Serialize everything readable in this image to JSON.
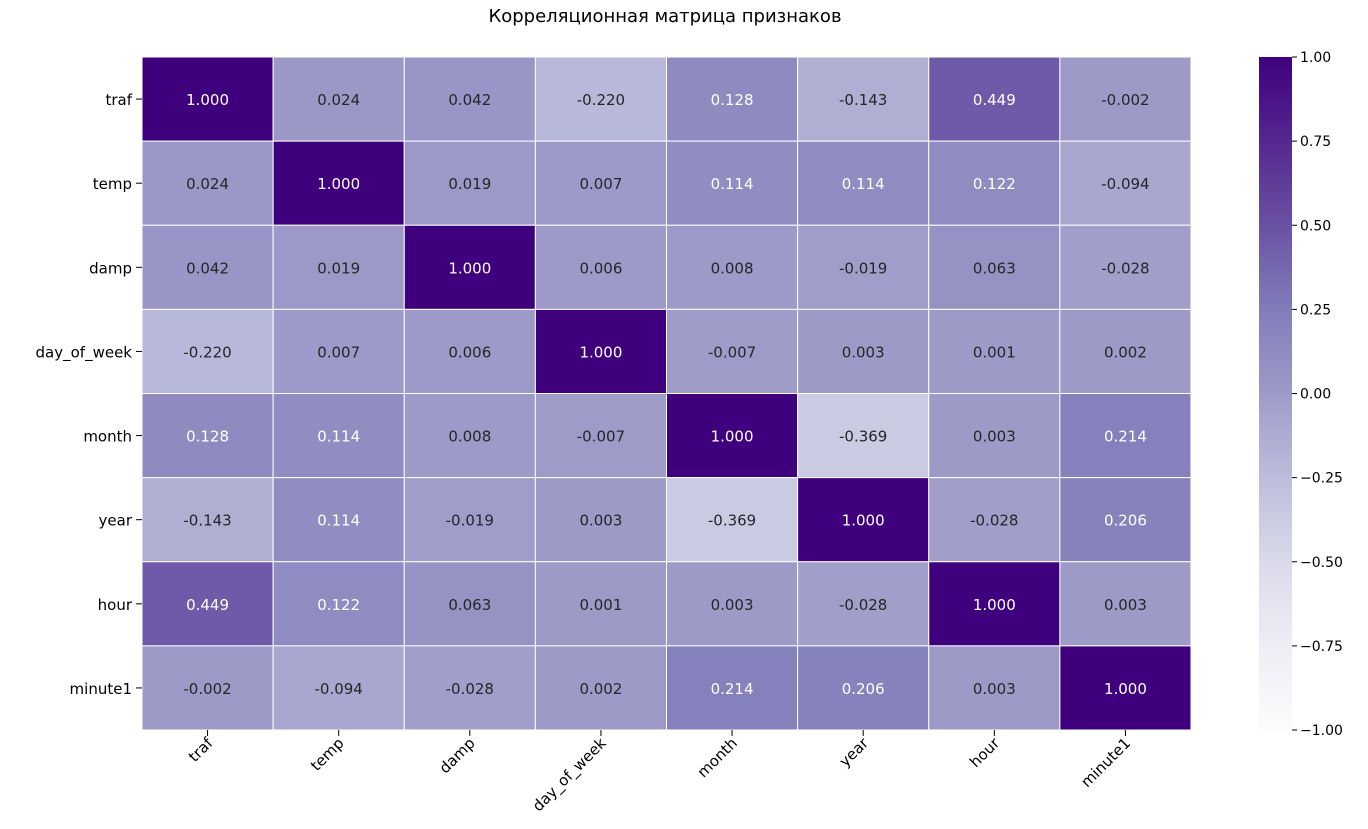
{
  "chart_data": {
    "type": "heatmap",
    "title": "Корреляционная матрица признаков",
    "rows": [
      "traf",
      "temp",
      "damp",
      "day_of_week",
      "month",
      "year",
      "hour",
      "minute1"
    ],
    "cols": [
      "traf",
      "temp",
      "damp",
      "day_of_week",
      "month",
      "year",
      "hour",
      "minute1"
    ],
    "values": [
      [
        1.0,
        0.024,
        0.042,
        -0.22,
        0.128,
        -0.143,
        0.449,
        -0.002
      ],
      [
        0.024,
        1.0,
        0.019,
        0.007,
        0.114,
        0.114,
        0.122,
        -0.094
      ],
      [
        0.042,
        0.019,
        1.0,
        0.006,
        0.008,
        -0.019,
        0.063,
        -0.028
      ],
      [
        -0.22,
        0.007,
        0.006,
        1.0,
        -0.007,
        0.003,
        0.001,
        0.002
      ],
      [
        0.128,
        0.114,
        0.008,
        -0.007,
        1.0,
        -0.369,
        0.003,
        0.214
      ],
      [
        -0.143,
        0.114,
        -0.019,
        0.003,
        -0.369,
        1.0,
        -0.028,
        0.206
      ],
      [
        0.449,
        0.122,
        0.063,
        0.001,
        0.003,
        -0.028,
        1.0,
        0.003
      ],
      [
        -0.002,
        -0.094,
        -0.028,
        0.002,
        0.214,
        0.206,
        0.003,
        1.0
      ]
    ],
    "value_range": [
      -1.0,
      1.0
    ],
    "colormap": "Purples",
    "colorbar_ticks": [
      "1.00",
      "0.75",
      "0.50",
      "0.25",
      "0.00",
      "−0.25",
      "−0.50",
      "−0.75",
      "−1.00"
    ],
    "colorbar_tick_values": [
      1.0,
      0.75,
      0.5,
      0.25,
      0.0,
      -0.25,
      -0.5,
      -0.75,
      -1.0
    ],
    "annotation_format": "3 decimals",
    "grid": true
  }
}
